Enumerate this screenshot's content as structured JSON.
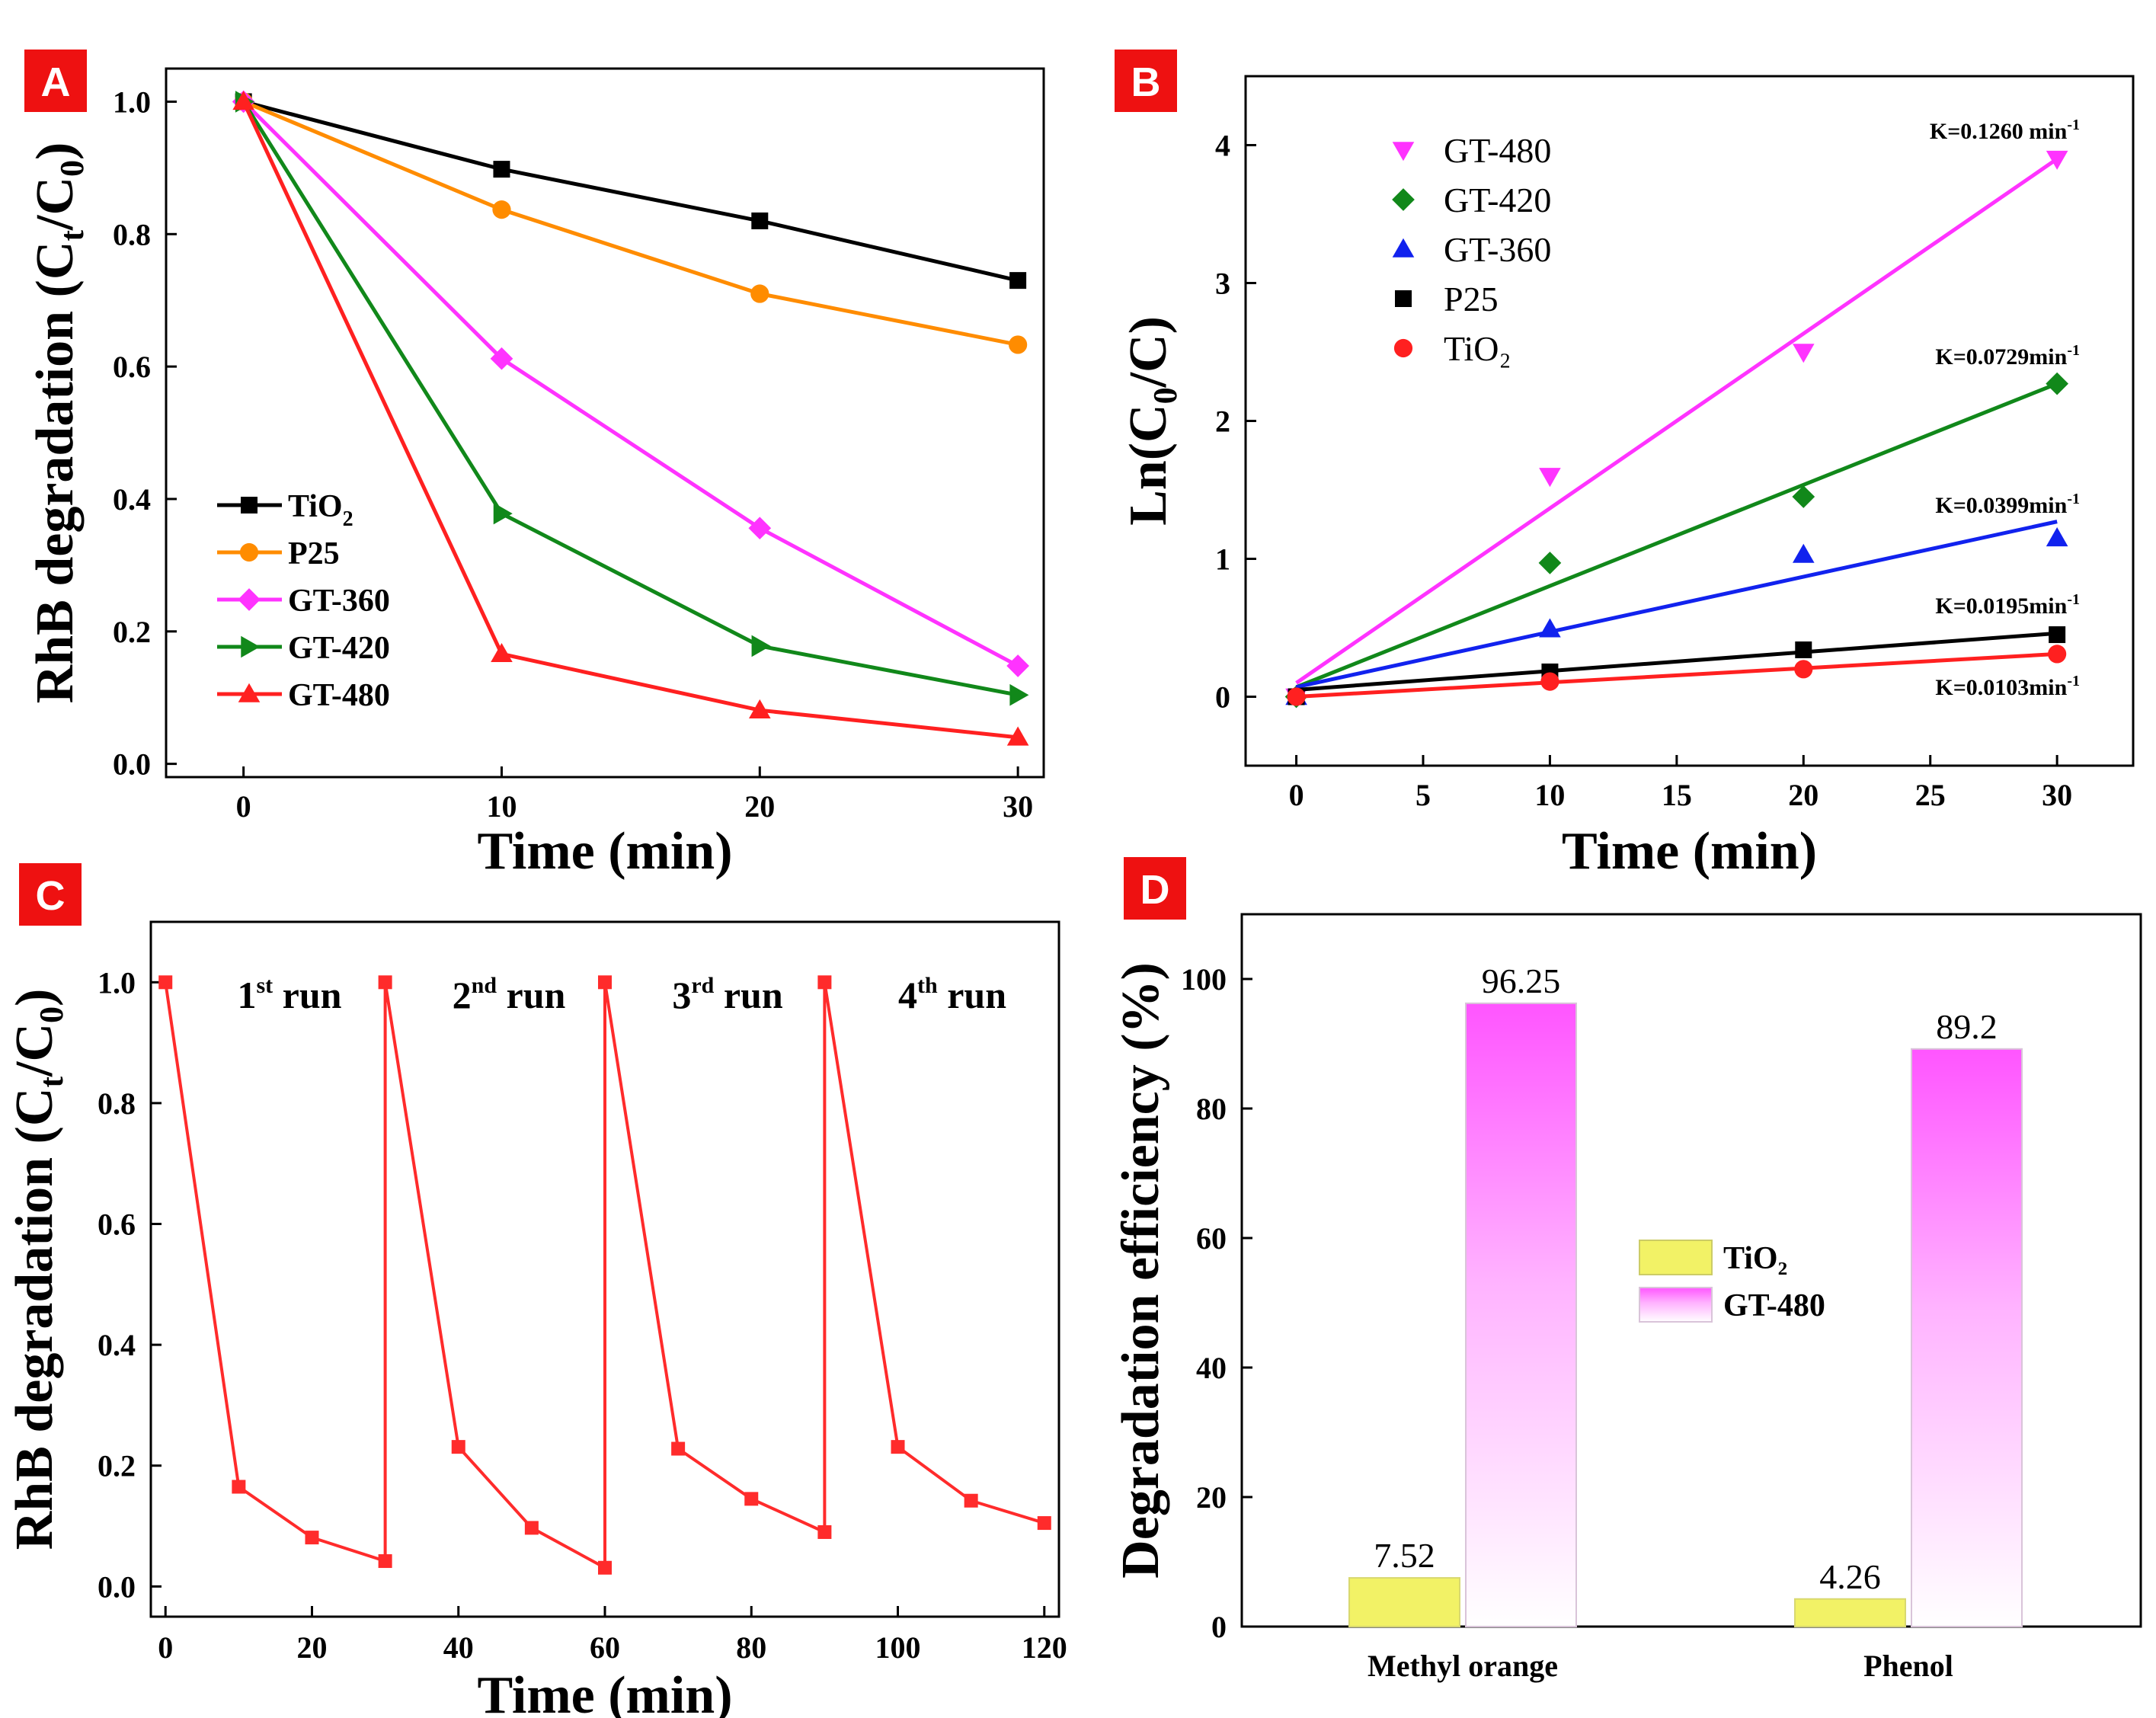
{
  "colors": {
    "TiO2_A": "#000000",
    "P25_A": "#ff8c00",
    "GT360": "#ff33ff",
    "GT420": "#11881a",
    "GT480_A": "#ff2020",
    "GT480_B": "#ff33ff",
    "GT420_B": "#11881a",
    "GT360_B": "#1122ee",
    "P25_B": "#000000",
    "TiO2_B": "#ff2020",
    "runC": "#ff2b2b",
    "barTiO2": "#f2f266",
    "barGT480": "#ff66ff",
    "badge": "#ee1111"
  },
  "chart_data": [
    {
      "id": "A",
      "type": "line",
      "badge": "A",
      "xlabel": "Time (min)",
      "ylabel": "RhB degradation (C",
      "ylabel_sub1": "t",
      "ylabel_mid": "/C",
      "ylabel_sub2": "0",
      "ylabel_end": ")",
      "xlim": [
        -3,
        31
      ],
      "ylim": [
        -0.02,
        1.05
      ],
      "xticks": [
        "0",
        "10",
        "20",
        "30"
      ],
      "yticks": [
        "0.0",
        "0.2",
        "0.4",
        "0.6",
        "0.8",
        "1.0"
      ],
      "x": [
        0,
        10,
        20,
        30
      ],
      "series": [
        {
          "name": "TiO",
          "sub": "2",
          "marker": "square",
          "color_key": "TiO2_A",
          "values": [
            1.0,
            0.898,
            0.82,
            0.73
          ]
        },
        {
          "name": "P25",
          "sub": "",
          "marker": "circle",
          "color_key": "P25_A",
          "values": [
            1.0,
            0.837,
            0.71,
            0.633
          ]
        },
        {
          "name": "GT-360",
          "sub": "",
          "marker": "diamond",
          "color_key": "GT360",
          "values": [
            1.0,
            0.612,
            0.356,
            0.148
          ]
        },
        {
          "name": "GT-420",
          "sub": "",
          "marker": "triangle-right",
          "color_key": "GT420",
          "values": [
            1.0,
            0.378,
            0.178,
            0.104
          ]
        },
        {
          "name": "GT-480",
          "sub": "",
          "marker": "triangle-up",
          "color_key": "GT480_A",
          "values": [
            1.0,
            0.166,
            0.081,
            0.04
          ]
        }
      ]
    },
    {
      "id": "B",
      "type": "scatter",
      "badge": "B",
      "xlabel": "Time (min)",
      "ylabel": "Ln(C",
      "ylabel_sub1": "0",
      "ylabel_mid": "/C)",
      "xlim": [
        -2,
        33
      ],
      "ylim": [
        -0.5,
        4.5
      ],
      "xticks": [
        "0",
        "5",
        "10",
        "15",
        "20",
        "25",
        "30"
      ],
      "yticks": [
        "0",
        "1",
        "2",
        "3",
        "4"
      ],
      "x": [
        0,
        10,
        20,
        30
      ],
      "series": [
        {
          "name": "GT-480",
          "marker": "triangle-down",
          "color_key": "GT480_B",
          "values": [
            0.0,
            1.6,
            2.5,
            3.9
          ],
          "fit": [
            0.1,
            3.9
          ],
          "k_label": "K=0.1260 min",
          "k_sup": "-1"
        },
        {
          "name": "GT-420",
          "marker": "diamond",
          "color_key": "GT420_B",
          "values": [
            0.0,
            0.97,
            1.45,
            2.27
          ],
          "fit": [
            0.07,
            2.27
          ],
          "k_label": "K=0.0729min",
          "k_sup": "-1"
        },
        {
          "name": "GT-360",
          "marker": "triangle-up",
          "color_key": "GT360_B",
          "values": [
            0.0,
            0.49,
            1.03,
            1.15
          ],
          "fit": [
            0.07,
            1.27
          ],
          "k_label": "K=0.0399min",
          "k_sup": "-1"
        },
        {
          "name": "P25",
          "marker": "square",
          "color_key": "P25_B",
          "values": [
            0.0,
            0.18,
            0.34,
            0.45
          ],
          "fit": [
            0.05,
            0.46
          ],
          "k_label": "K=0.0195min",
          "k_sup": "-1"
        },
        {
          "name": "TiO₂",
          "marker": "circle",
          "color_key": "TiO2_B",
          "values": [
            0.0,
            0.11,
            0.2,
            0.31
          ],
          "fit": [
            0.0,
            0.31
          ],
          "k_label": "K=0.0103min",
          "k_sup": "-1"
        }
      ]
    },
    {
      "id": "C",
      "type": "line",
      "badge": "C",
      "xlabel": "Time (min)",
      "ylabel": "RhB degradation (C",
      "ylabel_sub1": "t",
      "ylabel_mid": "/C",
      "ylabel_sub2": "0",
      "ylabel_end": ")",
      "xlim": [
        -2,
        122
      ],
      "ylim": [
        -0.05,
        1.1
      ],
      "xticks": [
        "0",
        "20",
        "40",
        "60",
        "80",
        "100",
        "120"
      ],
      "yticks": [
        "0.0",
        "0.2",
        "0.4",
        "0.6",
        "0.8",
        "1.0"
      ],
      "runs": [
        {
          "label": "1",
          "sup": "st",
          "word": "run",
          "x": [
            0,
            10,
            20,
            30
          ],
          "values": [
            1.0,
            0.165,
            0.081,
            0.042
          ]
        },
        {
          "label": "2",
          "sup": "nd",
          "word": "run",
          "x": [
            30,
            40,
            50,
            60
          ],
          "values": [
            1.0,
            0.231,
            0.097,
            0.031
          ]
        },
        {
          "label": "3",
          "sup": "rd",
          "word": "run",
          "x": [
            60,
            70,
            80,
            90
          ],
          "values": [
            1.0,
            0.228,
            0.145,
            0.09
          ]
        },
        {
          "label": "4",
          "sup": "th",
          "word": "run",
          "x": [
            90,
            100,
            110,
            120
          ],
          "values": [
            1.0,
            0.231,
            0.142,
            0.105
          ]
        }
      ]
    },
    {
      "id": "D",
      "type": "bar",
      "badge": "D",
      "xlabel": "",
      "ylabel": "Degradation efficiency (%)",
      "ylim": [
        0,
        110
      ],
      "yticks": [
        "0",
        "20",
        "40",
        "60",
        "80",
        "100"
      ],
      "categories": [
        "Methyl orange",
        "Phenol"
      ],
      "series": [
        {
          "name": "TiO₂",
          "color_key": "barTiO2",
          "values": [
            7.52,
            4.26
          ],
          "labels": [
            "7.52",
            "4.26"
          ]
        },
        {
          "name": "GT-480",
          "color_key": "barGT480",
          "values": [
            96.25,
            89.2
          ],
          "labels": [
            "96.25",
            "89.2"
          ]
        }
      ]
    }
  ]
}
